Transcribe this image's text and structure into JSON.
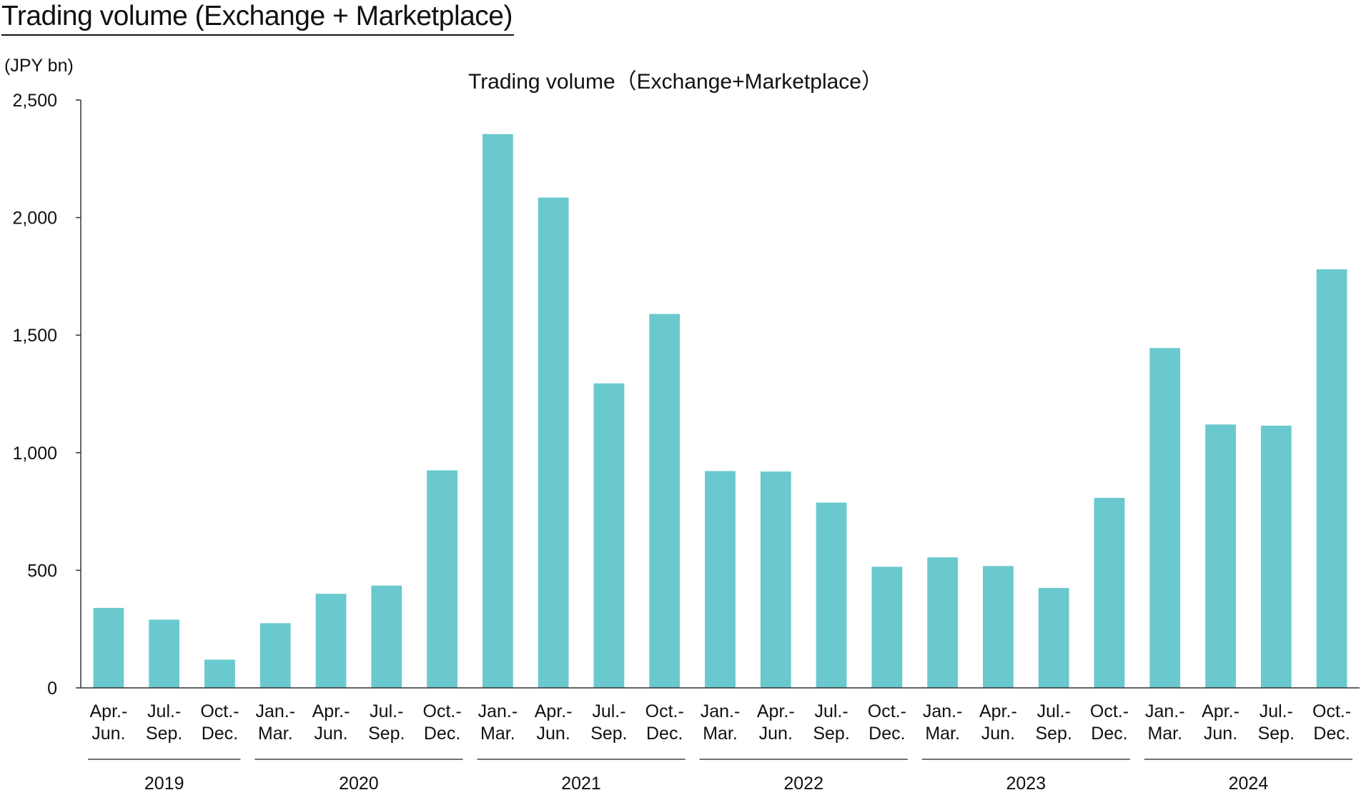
{
  "page_title": "Trading volume (Exchange + Marketplace)",
  "chart_data": {
    "type": "bar",
    "title": "Trading volume（Exchange+Marketplace）",
    "unit_label": "(JPY bn)",
    "xlabel": "",
    "ylabel": "",
    "ylim": [
      0,
      2500
    ],
    "y_ticks": [
      0,
      500,
      1000,
      1500,
      2000,
      2500
    ],
    "y_tick_labels": [
      "0",
      "500",
      "1,000",
      "1,500",
      "2,000",
      "2,500"
    ],
    "grid": false,
    "legend": "none",
    "bar_color": "#69C9CE",
    "categories": [
      "Apr.- Jun. 2019",
      "Jul.- Sep. 2019",
      "Oct.- Dec. 2019",
      "Jan.- Mar. 2020",
      "Apr.- Jun. 2020",
      "Jul.- Sep. 2020",
      "Oct.- Dec. 2020",
      "Jan.- Mar. 2021",
      "Apr.- Jun. 2021",
      "Jul.- Sep. 2021",
      "Oct.- Dec. 2021",
      "Jan.- Mar. 2022",
      "Apr.- Jun. 2022",
      "Jul.- Sep. 2022",
      "Oct.- Dec. 2022",
      "Jan.- Mar. 2023",
      "Apr.- Jun. 2023",
      "Jul.- Sep. 2023",
      "Oct.- Dec. 2023",
      "Jan.- Mar. 2024",
      "Apr.- Jun. 2024",
      "Jul.- Sep. 2024",
      "Oct.- Dec. 2024"
    ],
    "category_lines": [
      [
        "Apr.-",
        "Jun."
      ],
      [
        "Jul.-",
        "Sep."
      ],
      [
        "Oct.-",
        "Dec."
      ],
      [
        "Jan.-",
        "Mar."
      ],
      [
        "Apr.-",
        "Jun."
      ],
      [
        "Jul.-",
        "Sep."
      ],
      [
        "Oct.-",
        "Dec."
      ],
      [
        "Jan.-",
        "Mar."
      ],
      [
        "Apr.-",
        "Jun."
      ],
      [
        "Jul.-",
        "Sep."
      ],
      [
        "Oct.-",
        "Dec."
      ],
      [
        "Jan.-",
        "Mar."
      ],
      [
        "Apr.-",
        "Jun."
      ],
      [
        "Jul.-",
        "Sep."
      ],
      [
        "Oct.-",
        "Dec."
      ],
      [
        "Jan.-",
        "Mar."
      ],
      [
        "Apr.-",
        "Jun."
      ],
      [
        "Jul.-",
        "Sep."
      ],
      [
        "Oct.-",
        "Dec."
      ],
      [
        "Jan.-",
        "Mar."
      ],
      [
        "Apr.-",
        "Jun."
      ],
      [
        "Jul.-",
        "Sep."
      ],
      [
        "Oct.-",
        "Dec."
      ]
    ],
    "values": [
      340,
      290,
      120,
      275,
      400,
      435,
      925,
      2355,
      2085,
      1295,
      1590,
      922,
      920,
      788,
      515,
      555,
      518,
      425,
      808,
      1445,
      1120,
      1115,
      1780
    ],
    "year_groups": [
      {
        "label": "2019",
        "start": 0,
        "end": 2
      },
      {
        "label": "2020",
        "start": 3,
        "end": 6
      },
      {
        "label": "2021",
        "start": 7,
        "end": 10
      },
      {
        "label": "2022",
        "start": 11,
        "end": 14
      },
      {
        "label": "2023",
        "start": 15,
        "end": 18
      },
      {
        "label": "2024",
        "start": 19,
        "end": 22
      }
    ]
  }
}
